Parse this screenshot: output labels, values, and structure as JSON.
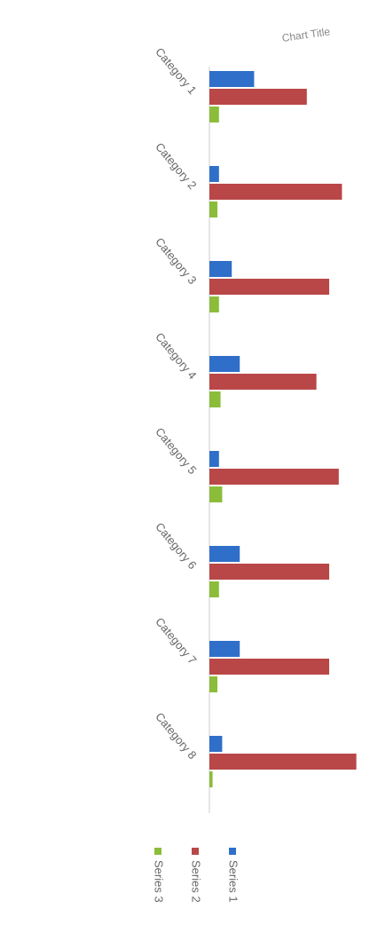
{
  "chart_data": {
    "type": "bar",
    "orientation": "horizontal",
    "title": "Chart Title",
    "categories": [
      "Category 1",
      "Category 2",
      "Category 3",
      "Category 4",
      "Category 5",
      "Category 6",
      "Category 7",
      "Category 8"
    ],
    "series": [
      {
        "name": "Series 1",
        "color": "#2f6fc9",
        "values": [
          28,
          6,
          14,
          19,
          6,
          19,
          19,
          8
        ]
      },
      {
        "name": "Series 2",
        "color": "#b94747",
        "values": [
          61,
          83,
          75,
          67,
          81,
          75,
          75,
          92
        ]
      },
      {
        "name": "Series 3",
        "color": "#8bbd3a",
        "values": [
          6,
          5,
          6,
          7,
          8,
          6,
          5,
          2
        ]
      }
    ],
    "xlim": [
      0,
      100
    ]
  }
}
